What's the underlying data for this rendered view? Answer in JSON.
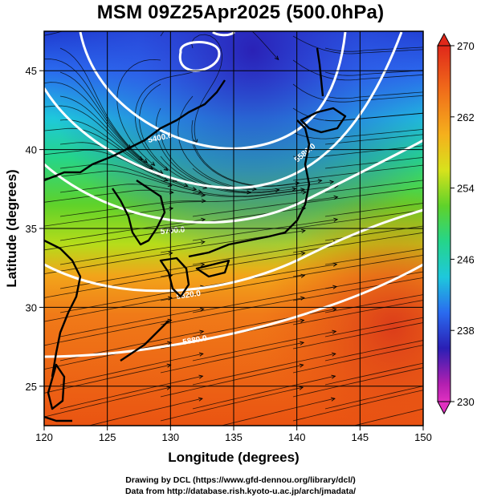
{
  "title": "MSM 09Z25Apr2025 (500.0hPa)",
  "xlabel": "Longitude (degrees)",
  "ylabel": "Latitude  (degrees)",
  "x_ticks": [
    "120",
    "125",
    "130",
    "135",
    "140",
    "145",
    "150"
  ],
  "y_ticks": [
    "25",
    "30",
    "35",
    "40",
    "45"
  ],
  "colorbar": {
    "ticks": [
      "270",
      "262",
      "254",
      "246",
      "238",
      "230"
    ],
    "min": 230,
    "max": 270,
    "unit": ""
  },
  "contour_labels": [
    "5400.0",
    "5700.0",
    "5820.0",
    "5880.0",
    "5580.0"
  ],
  "credits": {
    "line1": "Drawing by DCL (https://www.gfd-dennou.org/library/dcl/)",
    "line2": "Data from http://database.rish.kyoto-u.ac.jp/arch/jmadata/"
  },
  "map": {
    "lon_range": [
      120,
      150
    ],
    "lat_range": [
      22.5,
      47.5
    ],
    "field": "temperature",
    "contours": "geopotential height",
    "vectors": "wind streamlines"
  }
}
